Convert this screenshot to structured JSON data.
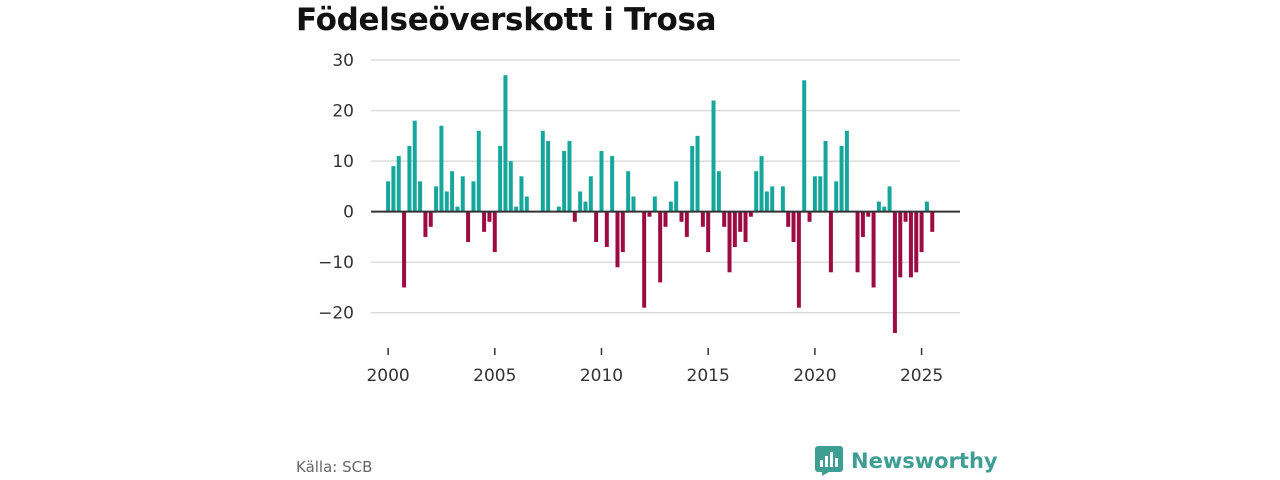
{
  "chart_data": {
    "type": "bar",
    "title": "Födelseöverskott i Trosa",
    "xlabel": "",
    "ylabel": "",
    "xlim": [
      1999.2,
      2026.8
    ],
    "ylim": [
      -25,
      31
    ],
    "yticks": [
      30,
      20,
      10,
      0,
      -10,
      -20
    ],
    "ytick_labels": [
      "30",
      "20",
      "10",
      "0",
      "−10",
      "−20"
    ],
    "xticks": [
      2000,
      2005,
      2010,
      2015,
      2020,
      2025
    ],
    "xtick_labels": [
      "2000",
      "2005",
      "2010",
      "2015",
      "2020",
      "2025"
    ],
    "grid": true,
    "start_year": 2000,
    "periods_per_year": 4,
    "positive_color": "#17a69b",
    "negative_color": "#9c0b42",
    "values": [
      6,
      9,
      11,
      -15,
      13,
      18,
      6,
      -5,
      -3,
      5,
      17,
      4,
      8,
      1,
      7,
      -6,
      6,
      16,
      -4,
      -2,
      -8,
      13,
      27,
      10,
      1,
      7,
      3,
      0,
      0,
      16,
      14,
      0,
      1,
      12,
      14,
      -2,
      4,
      2,
      7,
      -6,
      12,
      -7,
      11,
      -11,
      -8,
      8,
      3,
      0,
      -19,
      -1,
      3,
      -14,
      -3,
      2,
      6,
      -2,
      -5,
      13,
      15,
      -3,
      -8,
      22,
      8,
      -3,
      -12,
      -7,
      -4,
      -6,
      -1,
      8,
      11,
      4,
      5,
      0,
      5,
      -3,
      -6,
      -19,
      26,
      -2,
      7,
      7,
      14,
      -12,
      6,
      13,
      16,
      0,
      -12,
      -5,
      -1,
      -15,
      2,
      1,
      5,
      -24,
      -13,
      -2,
      -13,
      -12,
      -8,
      2,
      -4
    ]
  },
  "source": "Källa: SCB",
  "brand": {
    "name": "Newsworthy",
    "icon": "bar-chart-logo-icon",
    "color": "#3f9e93"
  }
}
